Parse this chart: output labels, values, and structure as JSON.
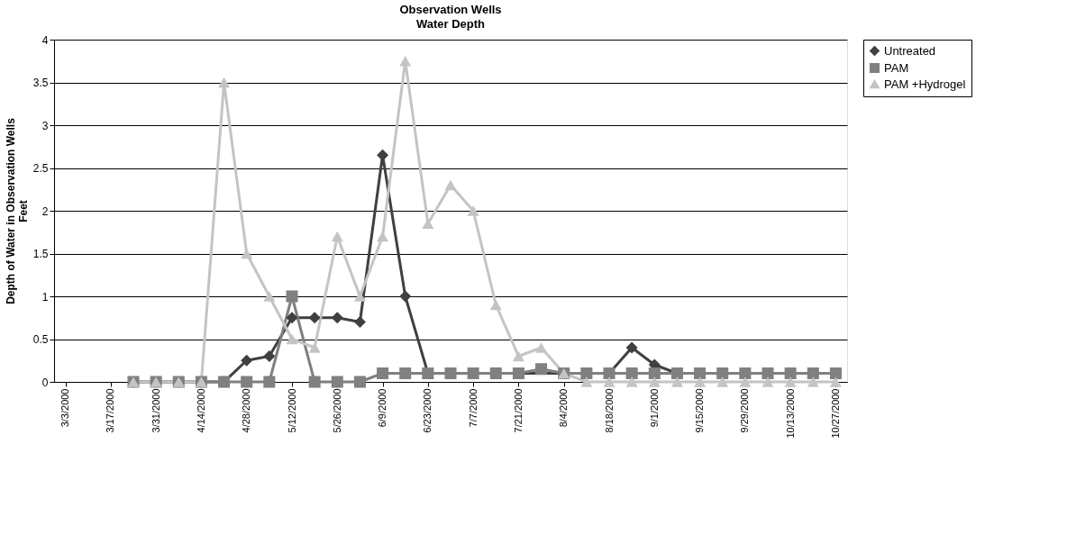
{
  "chart_data": {
    "type": "line",
    "title": "Observation Wells",
    "subtitle": "Water Depth",
    "ylabel": "Depth of Water in Observation Wells\nFeet",
    "categories": [
      "3/3/2000",
      null,
      "3/17/2000",
      null,
      "3/31/2000",
      null,
      "4/14/2000",
      null,
      "4/28/2000",
      null,
      "5/12/2000",
      null,
      "5/26/2000",
      null,
      "6/9/2000",
      null,
      "6/23/2000",
      null,
      "7/7/2000",
      null,
      "7/21/2000",
      null,
      "8/4/2000",
      null,
      "8/18/2000",
      null,
      "9/1/2000",
      null,
      "9/15/2000",
      null,
      "9/29/2000",
      null,
      "10/13/2000",
      null,
      "10/27/2000"
    ],
    "series": [
      {
        "name": "Untreated",
        "color": "#404040",
        "marker": "diamond",
        "values": [
          null,
          null,
          null,
          0,
          0,
          0,
          0,
          0,
          0.25,
          0.3,
          0.75,
          0.75,
          0.75,
          0.7,
          2.65,
          1.0,
          0.1,
          0.1,
          0.1,
          0.1,
          0.1,
          null,
          0.1,
          0.1,
          0.1,
          0.4,
          0.2,
          0.1,
          0.1,
          0.1,
          0.1,
          0.1,
          null,
          0.1,
          0.1
        ]
      },
      {
        "name": "PAM",
        "color": "#808080",
        "marker": "square",
        "values": [
          null,
          null,
          null,
          0,
          0,
          0,
          0,
          0,
          0,
          0,
          1.0,
          0,
          0,
          0,
          0.1,
          0.1,
          0.1,
          0.1,
          0.1,
          0.1,
          0.1,
          0.15,
          0.1,
          0.1,
          0.1,
          0.1,
          0.1,
          0.1,
          0.1,
          0.1,
          0.1,
          0.1,
          0.1,
          0.1,
          0.1
        ]
      },
      {
        "name": "PAM +Hydrogel",
        "color": "#c4c4c4",
        "marker": "triangle",
        "values": [
          null,
          null,
          null,
          0,
          0,
          0,
          0,
          3.5,
          1.5,
          1.0,
          0.5,
          0.4,
          1.7,
          1.0,
          1.7,
          3.75,
          1.85,
          2.3,
          2.0,
          0.9,
          0.3,
          0.4,
          0.1,
          0,
          0,
          0,
          0,
          0,
          0,
          0,
          0,
          0,
          0,
          0,
          0
        ]
      }
    ],
    "ylim": [
      0,
      4
    ],
    "yticks": [
      0,
      0.5,
      1,
      1.5,
      2,
      2.5,
      3,
      3.5,
      4
    ],
    "grid": "y",
    "legend": "right",
    "line_style": "solid"
  }
}
